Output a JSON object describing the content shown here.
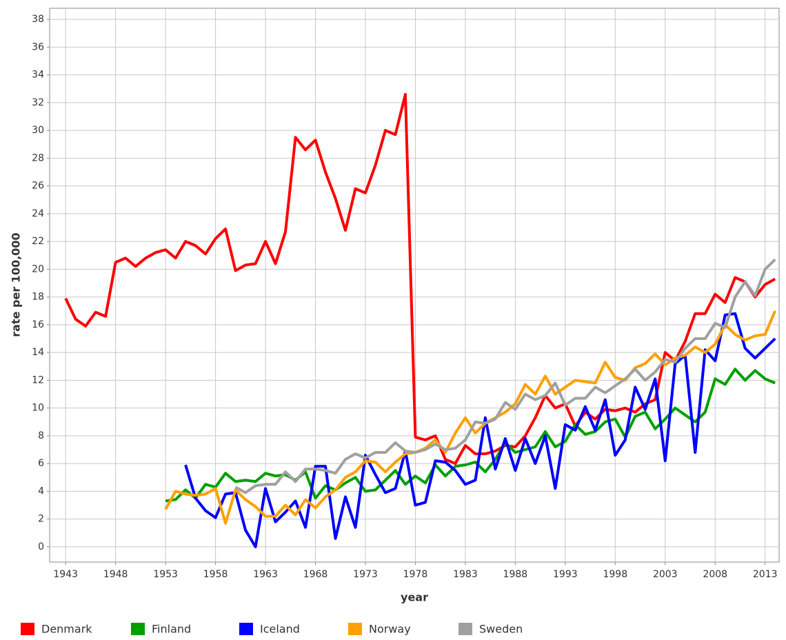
{
  "chart_data": {
    "type": "line",
    "x_label": "year",
    "y_label": "rate per 100,000",
    "x": [
      1943,
      1944,
      1945,
      1946,
      1947,
      1948,
      1949,
      1950,
      1951,
      1952,
      1953,
      1954,
      1955,
      1956,
      1957,
      1958,
      1959,
      1960,
      1961,
      1962,
      1963,
      1964,
      1965,
      1966,
      1967,
      1968,
      1969,
      1970,
      1971,
      1972,
      1973,
      1974,
      1975,
      1976,
      1977,
      1978,
      1979,
      1980,
      1981,
      1982,
      1983,
      1984,
      1985,
      1986,
      1987,
      1988,
      1989,
      1990,
      1991,
      1992,
      1993,
      1994,
      1995,
      1996,
      1997,
      1998,
      1999,
      2000,
      2001,
      2002,
      2003,
      2004,
      2005,
      2006,
      2007,
      2008,
      2009,
      2010,
      2011,
      2012,
      2013,
      2014
    ],
    "xlim": [
      1941.4,
      2014.4
    ],
    "xticks": [
      1943,
      1948,
      1953,
      1958,
      1963,
      1968,
      1973,
      1978,
      1983,
      1988,
      1993,
      1998,
      2003,
      2008,
      2013
    ],
    "ylim": [
      -1.1,
      38.8
    ],
    "yticks": [
      0,
      2,
      4,
      6,
      8,
      10,
      12,
      14,
      16,
      18,
      20,
      22,
      24,
      26,
      28,
      30,
      32,
      34,
      36,
      38
    ],
    "grid": true,
    "legend": "bottom",
    "series": [
      {
        "name": "Denmark",
        "color": "#ff0000",
        "values": [
          17.9,
          16.4,
          15.9,
          16.9,
          16.6,
          20.5,
          20.8,
          20.2,
          20.8,
          21.2,
          21.4,
          20.8,
          22.0,
          21.7,
          21.1,
          22.2,
          22.9,
          19.9,
          20.3,
          20.4,
          22.0,
          20.4,
          22.7,
          29.5,
          28.6,
          29.3,
          27.0,
          25.1,
          22.8,
          25.8,
          25.5,
          27.5,
          30.0,
          29.7,
          32.6,
          7.9,
          7.7,
          8.0,
          6.3,
          6.0,
          7.3,
          6.7,
          6.7,
          6.9,
          7.3,
          7.2,
          8.0,
          9.3,
          10.9,
          10.0,
          10.3,
          8.7,
          9.7,
          9.2,
          9.9,
          9.8,
          10.0,
          9.7,
          10.3,
          10.6,
          14.0,
          13.4,
          14.8,
          16.8,
          16.8,
          18.2,
          17.6,
          19.4,
          19.1,
          18.0,
          18.9,
          19.3
        ]
      },
      {
        "name": "Finland",
        "color": "#00a000",
        "values": [
          null,
          null,
          null,
          null,
          null,
          null,
          null,
          null,
          null,
          null,
          3.3,
          3.4,
          4.1,
          3.5,
          4.5,
          4.3,
          5.3,
          4.7,
          4.8,
          4.7,
          5.3,
          5.1,
          5.2,
          4.8,
          5.4,
          3.5,
          4.4,
          4.1,
          4.6,
          5.0,
          4.0,
          4.1,
          4.8,
          5.5,
          4.5,
          5.1,
          4.6,
          5.9,
          5.1,
          5.8,
          5.9,
          6.1,
          5.4,
          6.3,
          7.5,
          6.8,
          7.0,
          7.2,
          8.3,
          7.2,
          7.6,
          8.8,
          8.1,
          8.3,
          9.0,
          9.2,
          7.9,
          9.4,
          9.7,
          8.5,
          9.2,
          10.0,
          9.5,
          9.0,
          9.7,
          12.1,
          11.7,
          12.8,
          12.0,
          12.7,
          12.1,
          11.8
        ]
      },
      {
        "name": "Iceland",
        "color": "#0000ff",
        "values": [
          null,
          null,
          null,
          null,
          null,
          null,
          null,
          null,
          null,
          null,
          null,
          null,
          5.9,
          3.5,
          2.6,
          2.1,
          3.8,
          3.9,
          1.2,
          0.0,
          4.2,
          1.8,
          2.5,
          3.3,
          1.4,
          5.8,
          5.8,
          0.6,
          3.6,
          1.4,
          6.6,
          5.2,
          3.9,
          4.2,
          6.9,
          3.0,
          3.2,
          6.2,
          6.1,
          5.5,
          4.5,
          4.8,
          9.3,
          5.6,
          7.8,
          5.5,
          7.8,
          6.0,
          8.0,
          4.2,
          8.8,
          8.4,
          10.1,
          8.4,
          10.6,
          6.6,
          7.7,
          11.5,
          9.9,
          12.1,
          6.2,
          13.2,
          13.8,
          6.8,
          14.2,
          13.4,
          16.7,
          16.8,
          14.3,
          13.6,
          14.3,
          15.0
        ]
      },
      {
        "name": "Norway",
        "color": "#ffa000",
        "values": [
          null,
          null,
          null,
          null,
          null,
          null,
          null,
          null,
          null,
          null,
          2.7,
          4.0,
          3.8,
          3.7,
          3.8,
          4.2,
          1.7,
          4.1,
          3.4,
          2.9,
          2.2,
          2.2,
          3.0,
          2.3,
          3.4,
          2.8,
          3.6,
          4.1,
          5.0,
          5.4,
          6.2,
          6.1,
          5.4,
          6.1,
          6.7,
          6.8,
          7.1,
          7.7,
          6.8,
          8.2,
          9.3,
          8.2,
          8.9,
          9.3,
          9.7,
          10.3,
          11.7,
          11.0,
          12.3,
          11.0,
          11.5,
          12.0,
          11.9,
          11.8,
          13.3,
          12.2,
          12.0,
          12.9,
          13.2,
          13.9,
          13.1,
          13.6,
          13.8,
          14.4,
          14.0,
          14.6,
          16.0,
          15.3,
          14.9,
          15.2,
          15.3,
          17.0
        ]
      },
      {
        "name": "Sweden",
        "color": "#a0a0a0",
        "values": [
          null,
          null,
          null,
          null,
          null,
          null,
          null,
          null,
          null,
          null,
          null,
          null,
          null,
          null,
          null,
          null,
          null,
          4.3,
          3.9,
          4.4,
          4.5,
          4.5,
          5.4,
          4.7,
          5.6,
          5.6,
          5.5,
          5.3,
          6.3,
          6.7,
          6.4,
          6.8,
          6.8,
          7.5,
          6.9,
          6.8,
          7.0,
          7.4,
          7.0,
          7.1,
          7.7,
          9.0,
          8.9,
          9.2,
          10.4,
          9.9,
          11.0,
          10.6,
          10.9,
          11.8,
          10.2,
          10.7,
          10.7,
          11.5,
          11.1,
          11.6,
          12.1,
          12.8,
          12.0,
          12.6,
          13.5,
          13.3,
          14.3,
          15.0,
          15.0,
          16.1,
          15.8,
          18.0,
          19.1,
          18.1,
          20.0,
          20.7
        ]
      }
    ]
  }
}
